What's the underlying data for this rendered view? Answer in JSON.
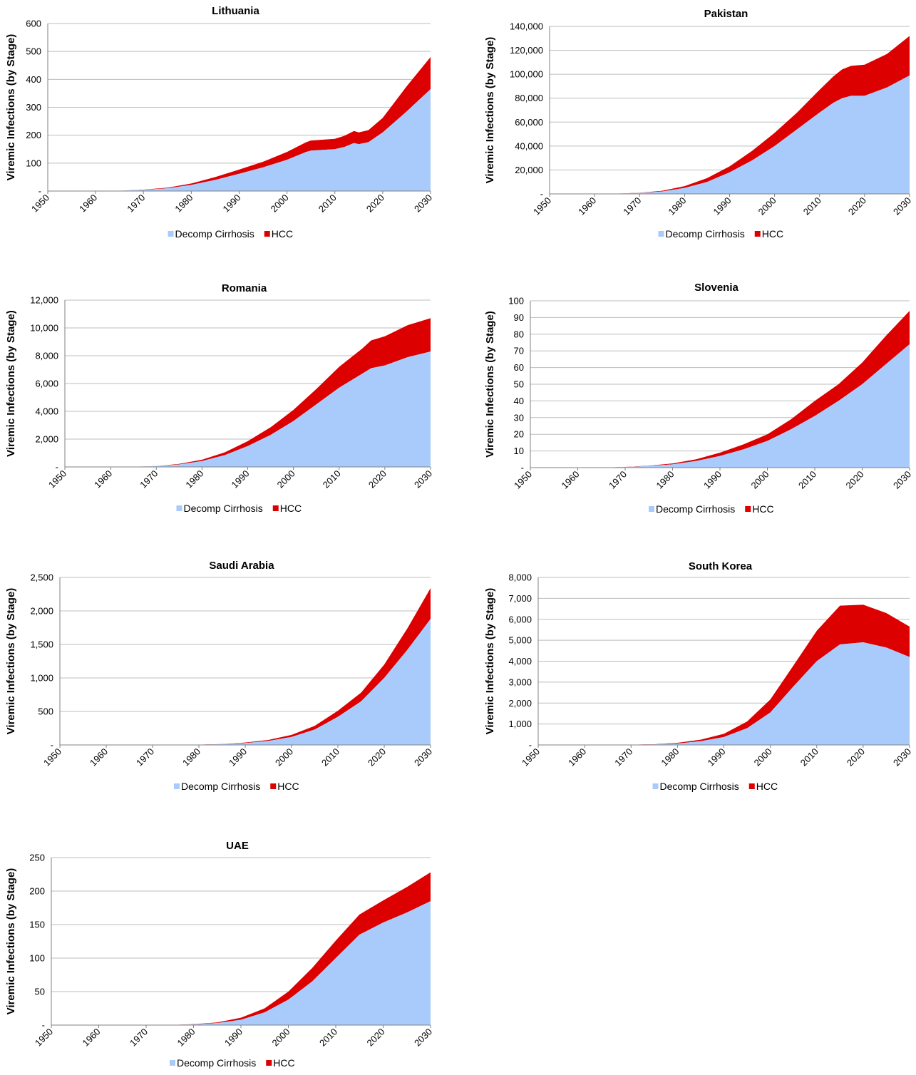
{
  "legend": {
    "decomp_label": "Decomp Cirrhosis",
    "hcc_label": "HCC"
  },
  "y_axis_label": "Viremic Infections (by Stage)",
  "colors": {
    "decomp": "#a9cbfb",
    "hcc": "#dc0000"
  },
  "chart_data": [
    {
      "type": "area",
      "title": "Lithuania",
      "ylabel": "Viremic Infections (by Stage)",
      "x": [
        1950,
        1955,
        1960,
        1965,
        1970,
        1975,
        1980,
        1985,
        1990,
        1995,
        2000,
        2004,
        2005,
        2010,
        2012,
        2014,
        2015,
        2017,
        2020,
        2025,
        2030
      ],
      "ylim": [
        0,
        600
      ],
      "yticks": [
        "-",
        "100",
        "200",
        "300",
        "400",
        "500",
        "600"
      ],
      "xticks": [
        "1950",
        "1960",
        "1970",
        "1980",
        "1990",
        "2000",
        "2010",
        "2020",
        "2030"
      ],
      "series": [
        {
          "name": "Decomp Cirrhosis",
          "values": [
            0,
            0,
            0,
            1,
            4,
            10,
            22,
            40,
            62,
            85,
            112,
            140,
            145,
            150,
            158,
            172,
            168,
            175,
            210,
            285,
            365
          ]
        },
        {
          "name": "HCC",
          "values": [
            0,
            0,
            0,
            0,
            1,
            2,
            5,
            10,
            15,
            20,
            28,
            35,
            36,
            37,
            40,
            43,
            42,
            43,
            52,
            90,
            115
          ]
        }
      ]
    },
    {
      "type": "area",
      "title": "Pakistan",
      "ylabel": "Viremic Infections (by Stage)",
      "x": [
        1950,
        1955,
        1960,
        1965,
        1970,
        1975,
        1980,
        1985,
        1990,
        1995,
        2000,
        2005,
        2010,
        2013,
        2015,
        2017,
        2020,
        2025,
        2030
      ],
      "ylim": [
        0,
        140000
      ],
      "yticks": [
        "-",
        "20,000",
        "40,000",
        "60,000",
        "80,000",
        "100,000",
        "120,000",
        "140,000"
      ],
      "xticks": [
        "1950",
        "1960",
        "1970",
        "1980",
        "1990",
        "2000",
        "2010",
        "2020",
        "2030"
      ],
      "series": [
        {
          "name": "Decomp Cirrhosis",
          "values": [
            0,
            0,
            0,
            200,
            800,
            2000,
            5000,
            10000,
            18000,
            28000,
            40000,
            54000,
            68000,
            76000,
            80000,
            82000,
            82000,
            89000,
            99000
          ]
        },
        {
          "name": "HCC",
          "values": [
            0,
            0,
            0,
            50,
            200,
            600,
            1500,
            3200,
            5000,
            8000,
            11000,
            14000,
            19000,
            22000,
            24000,
            25000,
            26000,
            28000,
            33000
          ]
        }
      ]
    },
    {
      "type": "area",
      "title": "Romania",
      "ylabel": "Viremic Infections (by Stage)",
      "x": [
        1950,
        1955,
        1960,
        1965,
        1970,
        1975,
        1980,
        1985,
        1990,
        1995,
        2000,
        2005,
        2010,
        2015,
        2017,
        2020,
        2025,
        2030
      ],
      "ylim": [
        0,
        12000
      ],
      "yticks": [
        "-",
        "2,000",
        "4,000",
        "6,000",
        "8,000",
        "10,000",
        "12,000"
      ],
      "xticks": [
        "1950",
        "1960",
        "1970",
        "1980",
        "1990",
        "2000",
        "2010",
        "2020",
        "2030"
      ],
      "series": [
        {
          "name": "Decomp Cirrhosis",
          "values": [
            0,
            0,
            0,
            10,
            50,
            180,
            420,
            850,
            1500,
            2300,
            3300,
            4500,
            5700,
            6700,
            7100,
            7300,
            7900,
            8300
          ]
        },
        {
          "name": "HCC",
          "values": [
            0,
            0,
            0,
            2,
            10,
            40,
            100,
            200,
            350,
            550,
            800,
            1100,
            1500,
            1800,
            2000,
            2100,
            2300,
            2400
          ]
        }
      ]
    },
    {
      "type": "area",
      "title": "Slovenia",
      "ylabel": "Viremic Infections (by Stage)",
      "x": [
        1950,
        1955,
        1960,
        1965,
        1970,
        1975,
        1980,
        1985,
        1990,
        1995,
        2000,
        2005,
        2010,
        2015,
        2020,
        2025,
        2030
      ],
      "ylim": [
        0,
        100
      ],
      "yticks": [
        "-",
        "10",
        "20",
        "30",
        "40",
        "50",
        "60",
        "70",
        "80",
        "90",
        "100"
      ],
      "xticks": [
        "1950",
        "1960",
        "1970",
        "1980",
        "1990",
        "2000",
        "2010",
        "2020",
        "2030"
      ],
      "series": [
        {
          "name": "Decomp Cirrhosis",
          "values": [
            0,
            0,
            0,
            0,
            0.3,
            1,
            2,
            4,
            7,
            11,
            16,
            23,
            31,
            40,
            50,
            62,
            74
          ]
        },
        {
          "name": "HCC",
          "values": [
            0,
            0,
            0,
            0,
            0.1,
            0.2,
            0.5,
            1,
            2,
            3,
            4,
            6,
            9,
            10,
            13,
            17,
            20
          ]
        }
      ]
    },
    {
      "type": "area",
      "title": "Saudi Arabia",
      "ylabel": "Viremic Infections (by Stage)",
      "x": [
        1950,
        1955,
        1960,
        1965,
        1970,
        1975,
        1980,
        1985,
        1990,
        1995,
        2000,
        2005,
        2010,
        2015,
        2020,
        2025,
        2030
      ],
      "ylim": [
        0,
        2500
      ],
      "yticks": [
        "-",
        "500",
        "1,000",
        "1,500",
        "2,000",
        "2,500"
      ],
      "xticks": [
        "1950",
        "1960",
        "1970",
        "1980",
        "1990",
        "2000",
        "2010",
        "2020",
        "2030"
      ],
      "series": [
        {
          "name": "Decomp Cirrhosis",
          "values": [
            0,
            0,
            0,
            0,
            0,
            1,
            3,
            10,
            28,
            60,
            120,
            230,
            420,
            650,
            1000,
            1420,
            1880
          ]
        },
        {
          "name": "HCC",
          "values": [
            0,
            0,
            0,
            0,
            0,
            0,
            1,
            3,
            8,
            15,
            30,
            55,
            90,
            130,
            200,
            320,
            460
          ]
        }
      ]
    },
    {
      "type": "area",
      "title": "South Korea",
      "ylabel": "Viremic Infections (by Stage)",
      "x": [
        1950,
        1955,
        1960,
        1965,
        1970,
        1975,
        1980,
        1985,
        1990,
        1995,
        2000,
        2005,
        2010,
        2015,
        2020,
        2025,
        2030
      ],
      "ylim": [
        0,
        8000
      ],
      "yticks": [
        "-",
        "1,000",
        "2,000",
        "3,000",
        "4,000",
        "5,000",
        "6,000",
        "7,000",
        "8,000"
      ],
      "xticks": [
        "1950",
        "1960",
        "1970",
        "1980",
        "1990",
        "2000",
        "2010",
        "2020",
        "2030"
      ],
      "series": [
        {
          "name": "Decomp Cirrhosis",
          "values": [
            0,
            0,
            0,
            0,
            5,
            25,
            70,
            180,
            380,
            800,
            1550,
            2800,
            4000,
            4800,
            4900,
            4650,
            4200
          ]
        },
        {
          "name": "HCC",
          "values": [
            0,
            0,
            0,
            0,
            3,
            10,
            30,
            70,
            150,
            320,
            620,
            1000,
            1450,
            1850,
            1800,
            1650,
            1450
          ]
        }
      ]
    },
    {
      "type": "area",
      "title": "UAE",
      "ylabel": "Viremic Infections (by Stage)",
      "x": [
        1950,
        1955,
        1960,
        1965,
        1970,
        1975,
        1980,
        1985,
        1990,
        1995,
        2000,
        2005,
        2010,
        2015,
        2020,
        2025,
        2030
      ],
      "ylim": [
        0,
        250
      ],
      "yticks": [
        "-",
        "50",
        "100",
        "150",
        "200",
        "250"
      ],
      "xticks": [
        "1950",
        "1960",
        "1970",
        "1980",
        "1990",
        "2000",
        "2010",
        "2020",
        "2030"
      ],
      "series": [
        {
          "name": "Decomp Cirrhosis",
          "values": [
            0,
            0,
            0,
            0,
            0,
            0,
            1,
            3,
            8,
            19,
            38,
            65,
            100,
            135,
            153,
            168,
            185
          ]
        },
        {
          "name": "HCC",
          "values": [
            0,
            0,
            0,
            0,
            0,
            0,
            0.5,
            1,
            3,
            6,
            12,
            20,
            26,
            30,
            33,
            38,
            43
          ]
        }
      ]
    }
  ]
}
